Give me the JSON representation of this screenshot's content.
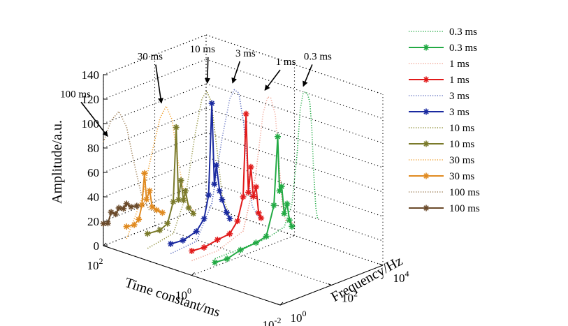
{
  "chart_data": {
    "type": "line",
    "projection": "3d",
    "xlabel": "Time constant/ms",
    "ylabel": "Frequency/Hz",
    "zlabel": "Amplitude/a.u.",
    "x_scale": "log",
    "y_scale": "log",
    "xlim": [
      100,
      0.01
    ],
    "ylim": [
      1,
      10000
    ],
    "zlim": [
      0,
      140
    ],
    "x_ticks": [
      {
        "base": "10",
        "exp": "2"
      },
      {
        "base": "10",
        "exp": "0"
      },
      {
        "base": "10",
        "exp": "-2"
      }
    ],
    "y_ticks": [
      {
        "base": "10",
        "exp": "0"
      },
      {
        "base": "10",
        "exp": "2"
      },
      {
        "base": "10",
        "exp": "4"
      }
    ],
    "z_ticks": [
      "0",
      "20",
      "40",
      "60",
      "80",
      "100",
      "120",
      "140"
    ],
    "grid": true,
    "legend_position": "right",
    "series": [
      {
        "name": "0.3 ms",
        "style": "dotted",
        "color": "#22aa44",
        "time_constant_ms": 0.3,
        "points": [
          [
            0.3,
            1,
            20
          ],
          [
            0.3,
            100,
            20
          ],
          [
            0.3,
            500,
            24
          ],
          [
            0.3,
            1000,
            40
          ],
          [
            0.3,
            1600,
            80
          ],
          [
            0.3,
            2100,
            115
          ],
          [
            0.3,
            2700,
            127
          ],
          [
            0.3,
            3300,
            128
          ],
          [
            0.3,
            4000,
            126
          ],
          [
            0.3,
            5000,
            118
          ],
          [
            0.3,
            6000,
            95
          ],
          [
            0.3,
            7000,
            60
          ],
          [
            0.3,
            8500,
            30
          ],
          [
            0.3,
            10000,
            20
          ]
        ]
      },
      {
        "name": "0.3 ms",
        "style": "star",
        "color": "#22aa44",
        "time_constant_ms": 0.3,
        "points": [
          [
            0.3,
            1,
            17
          ],
          [
            0.3,
            3,
            16
          ],
          [
            0.3,
            10,
            19
          ],
          [
            0.3,
            40,
            20
          ],
          [
            0.3,
            100,
            22
          ],
          [
            0.3,
            200,
            45
          ],
          [
            0.3,
            280,
            100
          ],
          [
            0.3,
            330,
            55
          ],
          [
            0.3,
            400,
            58
          ],
          [
            0.3,
            500,
            35
          ],
          [
            0.3,
            650,
            42
          ],
          [
            0.3,
            800,
            28
          ],
          [
            0.3,
            1000,
            22
          ]
        ]
      },
      {
        "name": "1 ms",
        "style": "dotted",
        "color": "#f0a090",
        "time_constant_ms": 1,
        "points": [
          [
            1,
            1,
            12
          ],
          [
            1,
            10,
            12
          ],
          [
            1,
            100,
            20
          ],
          [
            1,
            300,
            60
          ],
          [
            1,
            600,
            110
          ],
          [
            1,
            900,
            122
          ],
          [
            1,
            1200,
            120
          ],
          [
            1,
            1800,
            105
          ],
          [
            1,
            2600,
            60
          ],
          [
            1,
            3300,
            30
          ],
          [
            1,
            4500,
            15
          ],
          [
            1,
            10000,
            10
          ]
        ]
      },
      {
        "name": "1 ms",
        "style": "star",
        "color": "#e11a1a",
        "time_constant_ms": 1,
        "points": [
          [
            1,
            1,
            20
          ],
          [
            1,
            3,
            19
          ],
          [
            1,
            10,
            21
          ],
          [
            1,
            30,
            22
          ],
          [
            1,
            60,
            30
          ],
          [
            1,
            100,
            48
          ],
          [
            1,
            130,
            115
          ],
          [
            1,
            160,
            50
          ],
          [
            1,
            200,
            70
          ],
          [
            1,
            250,
            45
          ],
          [
            1,
            320,
            52
          ],
          [
            1,
            400,
            30
          ],
          [
            1,
            500,
            25
          ]
        ]
      },
      {
        "name": "3 ms",
        "style": "dotted",
        "color": "#6070c0",
        "time_constant_ms": 3,
        "points": [
          [
            3,
            1,
            12
          ],
          [
            3,
            10,
            14
          ],
          [
            3,
            40,
            40
          ],
          [
            3,
            100,
            90
          ],
          [
            3,
            200,
            120
          ],
          [
            3,
            300,
            126
          ],
          [
            3,
            450,
            122
          ],
          [
            3,
            700,
            95
          ],
          [
            3,
            1000,
            55
          ],
          [
            3,
            1500,
            25
          ],
          [
            3,
            3000,
            12
          ]
        ]
      },
      {
        "name": "3 ms",
        "style": "star",
        "color": "#1a2aa0",
        "time_constant_ms": 3,
        "points": [
          [
            3,
            1,
            20
          ],
          [
            3,
            3,
            19
          ],
          [
            3,
            10,
            22
          ],
          [
            3,
            20,
            30
          ],
          [
            3,
            30,
            48
          ],
          [
            3,
            40,
            122
          ],
          [
            3,
            50,
            55
          ],
          [
            3,
            60,
            70
          ],
          [
            3,
            80,
            48
          ],
          [
            3,
            100,
            40
          ],
          [
            3,
            150,
            28
          ],
          [
            3,
            200,
            22
          ]
        ]
      },
      {
        "name": "10 ms",
        "style": "dotted",
        "color": "#8a8a30",
        "time_constant_ms": 10,
        "points": [
          [
            10,
            1,
            10
          ],
          [
            10,
            10,
            14
          ],
          [
            10,
            30,
            40
          ],
          [
            10,
            70,
            88
          ],
          [
            10,
            130,
            115
          ],
          [
            10,
            200,
            120
          ],
          [
            10,
            300,
            110
          ],
          [
            10,
            500,
            70
          ],
          [
            10,
            800,
            30
          ],
          [
            10,
            1500,
            12
          ]
        ]
      },
      {
        "name": "10 ms",
        "style": "star",
        "color": "#7a7a2a",
        "time_constant_ms": 10,
        "points": [
          [
            10,
            1,
            22
          ],
          [
            10,
            3,
            21
          ],
          [
            10,
            6,
            24
          ],
          [
            10,
            10,
            40
          ],
          [
            10,
            13,
            100
          ],
          [
            10,
            16,
            40
          ],
          [
            10,
            20,
            55
          ],
          [
            10,
            25,
            38
          ],
          [
            10,
            30,
            45
          ],
          [
            10,
            40,
            30
          ],
          [
            10,
            60,
            24
          ]
        ]
      },
      {
        "name": "30 ms",
        "style": "dotted",
        "color": "#f0a030",
        "time_constant_ms": 30,
        "points": [
          [
            30,
            1,
            12
          ],
          [
            30,
            4,
            40
          ],
          [
            30,
            10,
            75
          ],
          [
            30,
            20,
            100
          ],
          [
            30,
            35,
            108
          ],
          [
            30,
            60,
            95
          ],
          [
            30,
            100,
            60
          ],
          [
            30,
            200,
            25
          ],
          [
            30,
            500,
            10
          ]
        ]
      },
      {
        "name": "30 ms",
        "style": "star",
        "color": "#e08a20",
        "time_constant_ms": 30,
        "points": [
          [
            30,
            1,
            22
          ],
          [
            30,
            2,
            21
          ],
          [
            30,
            3,
            24
          ],
          [
            30,
            4,
            35
          ],
          [
            30,
            5,
            60
          ],
          [
            30,
            6,
            38
          ],
          [
            30,
            8,
            44
          ],
          [
            30,
            10,
            30
          ],
          [
            30,
            15,
            26
          ],
          [
            30,
            25,
            22
          ]
        ]
      },
      {
        "name": "100 ms",
        "style": "dotted",
        "color": "#9a7a50",
        "time_constant_ms": 100,
        "points": [
          [
            100,
            1,
            85
          ],
          [
            100,
            2,
            100
          ],
          [
            100,
            4,
            105
          ],
          [
            100,
            8,
            90
          ],
          [
            100,
            15,
            60
          ],
          [
            100,
            30,
            30
          ],
          [
            100,
            60,
            15
          ],
          [
            100,
            150,
            10
          ]
        ]
      },
      {
        "name": "100 ms",
        "style": "star",
        "color": "#6a4a2a",
        "time_constant_ms": 100,
        "points": [
          [
            100,
            1,
            18
          ],
          [
            100,
            1.5,
            17
          ],
          [
            100,
            2,
            25
          ],
          [
            100,
            3,
            22
          ],
          [
            100,
            4,
            26
          ],
          [
            100,
            6,
            24
          ],
          [
            100,
            8,
            27
          ],
          [
            100,
            12,
            23
          ],
          [
            100,
            20,
            22
          ]
        ]
      }
    ],
    "annotations": [
      {
        "text": "100 ms",
        "series_index": 10,
        "target": [
          100,
          1,
          85
        ]
      },
      {
        "text": "30 ms",
        "series_index": 8,
        "target": [
          30,
          20,
          108
        ]
      },
      {
        "text": "10 ms",
        "series_index": 6,
        "target": [
          10,
          200,
          122
        ]
      },
      {
        "text": "3 ms",
        "series_index": 4,
        "target": [
          3,
          300,
          127
        ]
      },
      {
        "text": "1 ms",
        "series_index": 2,
        "target": [
          1,
          900,
          123
        ]
      },
      {
        "text": "0.3 ms",
        "series_index": 0,
        "target": [
          0.3,
          3300,
          128
        ]
      }
    ]
  }
}
